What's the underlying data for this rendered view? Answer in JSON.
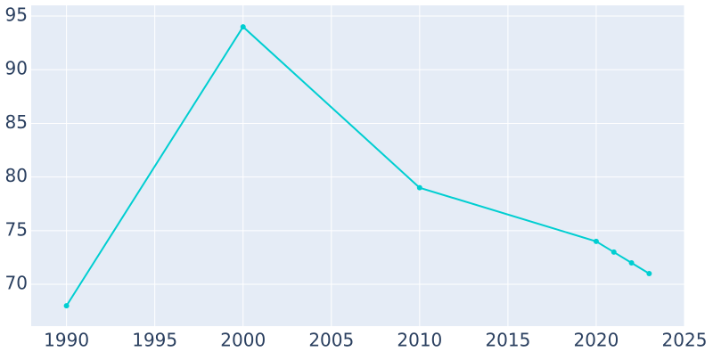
{
  "chart_data": {
    "type": "line",
    "x": [
      1990,
      2000,
      2010,
      2020,
      2021,
      2022,
      2023
    ],
    "series": [
      {
        "color": "#00ced1",
        "values": [
          68,
          94,
          79,
          74,
          73,
          72,
          71
        ]
      }
    ],
    "xlim": [
      1988,
      2025
    ],
    "ylim": [
      66.1,
      96
    ],
    "xticks": [
      1990,
      1995,
      2000,
      2005,
      2010,
      2015,
      2020,
      2025
    ],
    "yticks": [
      70,
      75,
      80,
      85,
      90,
      95
    ],
    "grid": true
  }
}
